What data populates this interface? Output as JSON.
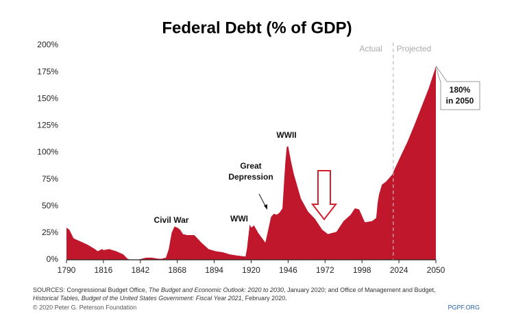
{
  "chart_data": {
    "type": "area",
    "title": "Federal Debt (% of GDP)",
    "x": [
      1790,
      1792,
      1795,
      1800,
      1805,
      1810,
      1812,
      1815,
      1816,
      1820,
      1825,
      1830,
      1833,
      1835,
      1840,
      1843,
      1846,
      1850,
      1855,
      1857,
      1860,
      1862,
      1864,
      1866,
      1868,
      1870,
      1872,
      1875,
      1880,
      1885,
      1890,
      1895,
      1900,
      1905,
      1910,
      1916,
      1917,
      1919,
      1920,
      1922,
      1925,
      1930,
      1932,
      1934,
      1936,
      1938,
      1940,
      1942,
      1944,
      1945,
      1946,
      1948,
      1950,
      1955,
      1960,
      1965,
      1970,
      1974,
      1980,
      1985,
      1990,
      1993,
      1996,
      2000,
      2005,
      2008,
      2009,
      2010,
      2012,
      2015,
      2019,
      2025,
      2030,
      2035,
      2040,
      2045,
      2050
    ],
    "series": [
      {
        "name": "Federal Debt",
        "color": "#c0172c",
        "values": [
          30,
          28,
          20,
          17,
          14,
          10,
          8,
          10,
          9,
          10,
          8,
          5,
          1,
          0,
          0,
          1,
          2,
          2,
          1,
          1,
          2,
          10,
          25,
          31,
          30,
          28,
          24,
          23,
          23,
          16,
          10,
          8,
          7,
          5,
          4,
          3,
          10,
          33,
          30,
          32,
          25,
          16,
          28,
          40,
          43,
          42,
          44,
          48,
          90,
          105,
          106,
          92,
          80,
          57,
          45,
          38,
          28,
          24,
          26,
          36,
          42,
          48,
          47,
          35,
          36,
          39,
          53,
          61,
          70,
          73,
          79,
          96,
          110,
          126,
          143,
          160,
          180
        ]
      }
    ],
    "xlim": [
      1790,
      2050
    ],
    "ylim": [
      0,
      200
    ],
    "xticks": [
      1790,
      1816,
      1842,
      1868,
      1894,
      1920,
      1946,
      1972,
      1998,
      2024,
      2050
    ],
    "yticks": [
      {
        "value": 0,
        "label": "0%"
      },
      {
        "value": 25,
        "label": "25%"
      },
      {
        "value": 50,
        "label": "50%"
      },
      {
        "value": 75,
        "label": "75%"
      },
      {
        "value": 100,
        "label": "100%"
      },
      {
        "value": 125,
        "label": "125%"
      },
      {
        "value": 150,
        "label": "150%"
      },
      {
        "value": 175,
        "label": "175%"
      },
      {
        "value": 200,
        "label": "200%"
      }
    ],
    "grid": false,
    "projection_start": 2020,
    "period_labels": [
      "Actual",
      "Projected"
    ],
    "annotations": [
      "Civil War",
      "WWI",
      "Great",
      "Depression",
      "WWII"
    ],
    "callout": [
      "180%",
      "in 2050"
    ],
    "sources": [
      [
        {
          "text": "SOURCES: Congressional Budget Office, ",
          "italic": false
        },
        {
          "text": "The Budget and Economic Outlook: 2020 to 2030",
          "italic": true
        },
        {
          "text": ", January 2020; and Office of Management and Budget,",
          "italic": false
        }
      ],
      [
        {
          "text": "Historical Tables, Budget of the United States Government: Fiscal Year 2021",
          "italic": true
        },
        {
          "text": ", February 2020.",
          "italic": false
        }
      ]
    ],
    "copyright": "© 2020 Peter G. Peterson Foundation",
    "site": "PGPF.ORG"
  }
}
